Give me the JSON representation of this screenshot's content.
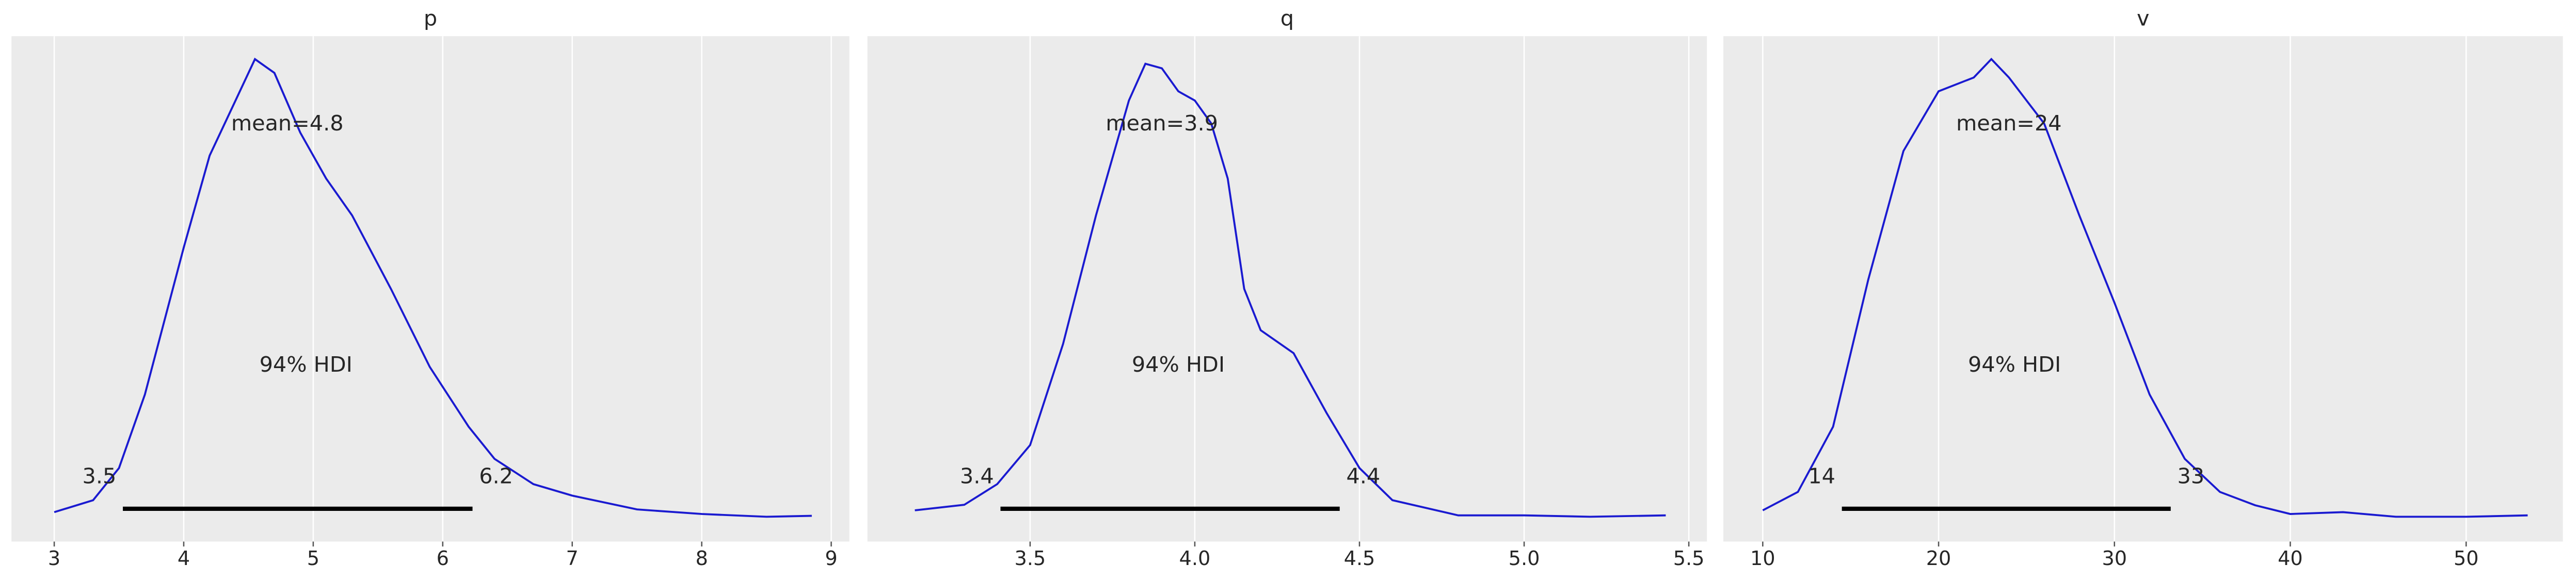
{
  "chart_data": [
    {
      "type": "density",
      "title": "p",
      "color": "#1a1ad0",
      "grid": true,
      "x": [
        3.0,
        3.3,
        3.5,
        3.7,
        4.0,
        4.2,
        4.4,
        4.55,
        4.7,
        4.9,
        5.1,
        5.3,
        5.6,
        5.9,
        6.2,
        6.4,
        6.7,
        7.0,
        7.5,
        8.0,
        8.5,
        8.85
      ],
      "values": [
        0.014,
        0.04,
        0.11,
        0.27,
        0.59,
        0.79,
        0.91,
        1.0,
        0.97,
        0.84,
        0.74,
        0.66,
        0.5,
        0.33,
        0.2,
        0.13,
        0.075,
        0.05,
        0.02,
        0.01,
        0.004,
        0.006
      ],
      "xlim": [
        2.67,
        9.14
      ],
      "xticks": [
        3,
        4,
        5,
        6,
        7,
        8,
        9
      ],
      "ylim": [
        -0.05,
        1.05
      ],
      "mean": 4.8,
      "mean_label": "mean=4.8",
      "hdi": [
        3.53,
        6.23
      ],
      "hdi_labels": [
        "3.5",
        "6.2"
      ],
      "hdi_text": "94% HDI"
    },
    {
      "type": "density",
      "title": "q",
      "color": "#1a1ad0",
      "grid": true,
      "x": [
        3.15,
        3.3,
        3.4,
        3.5,
        3.6,
        3.7,
        3.8,
        3.85,
        3.9,
        3.95,
        4.0,
        4.05,
        4.1,
        4.15,
        4.2,
        4.3,
        4.4,
        4.5,
        4.6,
        4.8,
        5.0,
        5.2,
        5.43
      ],
      "values": [
        0.018,
        0.03,
        0.075,
        0.16,
        0.38,
        0.66,
        0.91,
        0.99,
        0.98,
        0.93,
        0.91,
        0.86,
        0.74,
        0.5,
        0.41,
        0.36,
        0.23,
        0.11,
        0.04,
        0.007,
        0.007,
        0.004,
        0.007
      ],
      "xlim": [
        3.006,
        5.555
      ],
      "xticks": [
        3.5,
        {
          "value": 4,
          "label": "4.0"
        },
        4.5,
        {
          "value": 5,
          "label": "5.0"
        },
        5.5
      ],
      "ylim": [
        -0.05,
        1.05
      ],
      "mean": 3.9,
      "mean_label": "mean=3.9",
      "hdi": [
        3.41,
        4.44
      ],
      "hdi_labels": [
        "3.4",
        "4.4"
      ],
      "hdi_text": "94% HDI"
    },
    {
      "type": "density",
      "title": "v",
      "color": "#1a1ad0",
      "grid": true,
      "x": [
        10,
        12,
        14,
        16,
        18,
        20,
        22,
        23,
        24,
        26,
        28,
        30,
        32,
        34,
        36,
        38,
        40,
        43,
        46,
        50,
        53.5
      ],
      "values": [
        0.018,
        0.058,
        0.2,
        0.52,
        0.8,
        0.93,
        0.96,
        1.0,
        0.96,
        0.86,
        0.66,
        0.47,
        0.27,
        0.13,
        0.058,
        0.029,
        0.01,
        0.014,
        0.004,
        0.004,
        0.007
      ],
      "xlim": [
        7.76,
        55.5
      ],
      "xticks": [
        10,
        20,
        30,
        40,
        50
      ],
      "ylim": [
        -0.05,
        1.05
      ],
      "mean": 24,
      "mean_label": "mean=24",
      "hdi": [
        14.5,
        33.2
      ],
      "hdi_labels": [
        "14",
        "33"
      ],
      "hdi_text": "94% HDI"
    }
  ]
}
